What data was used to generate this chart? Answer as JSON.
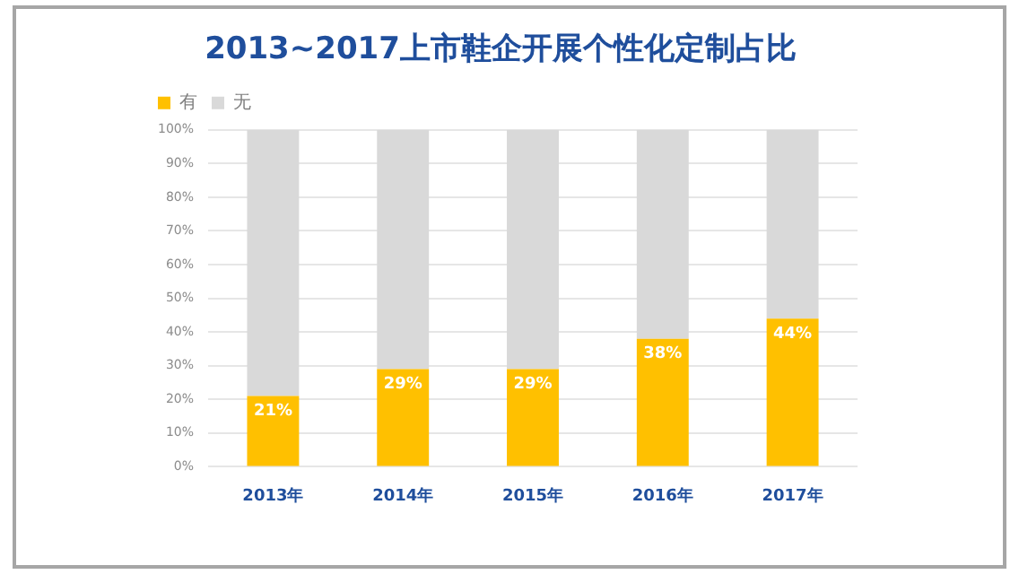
{
  "chart_data": {
    "type": "bar",
    "title": "2013~2017上市鞋企开展个性化定制占比",
    "categories": [
      "2013年",
      "2014年",
      "2015年",
      "2016年",
      "2017年"
    ],
    "stacked": true,
    "series": [
      {
        "name": "有",
        "color": "#ffc000",
        "values": [
          21,
          29,
          29,
          38,
          44
        ],
        "value_labels": [
          "21%",
          "29%",
          "29%",
          "38%",
          "44%"
        ]
      },
      {
        "name": "无",
        "color": "#d9d9d9",
        "values": [
          79,
          71,
          71,
          62,
          56
        ]
      }
    ],
    "ylim": [
      0,
      100
    ],
    "yticks": [
      {
        "value": 0,
        "label": "0%"
      },
      {
        "value": 10,
        "label": "10%"
      },
      {
        "value": 20,
        "label": "20%"
      },
      {
        "value": 30,
        "label": "30%"
      },
      {
        "value": 40,
        "label": "40%"
      },
      {
        "value": 50,
        "label": "50%"
      },
      {
        "value": 60,
        "label": "60%"
      },
      {
        "value": 70,
        "label": "70%"
      },
      {
        "value": 80,
        "label": "80%"
      },
      {
        "value": 90,
        "label": "90%"
      },
      {
        "value": 100,
        "label": "100%"
      }
    ],
    "grid": "y",
    "legend": "top left"
  }
}
